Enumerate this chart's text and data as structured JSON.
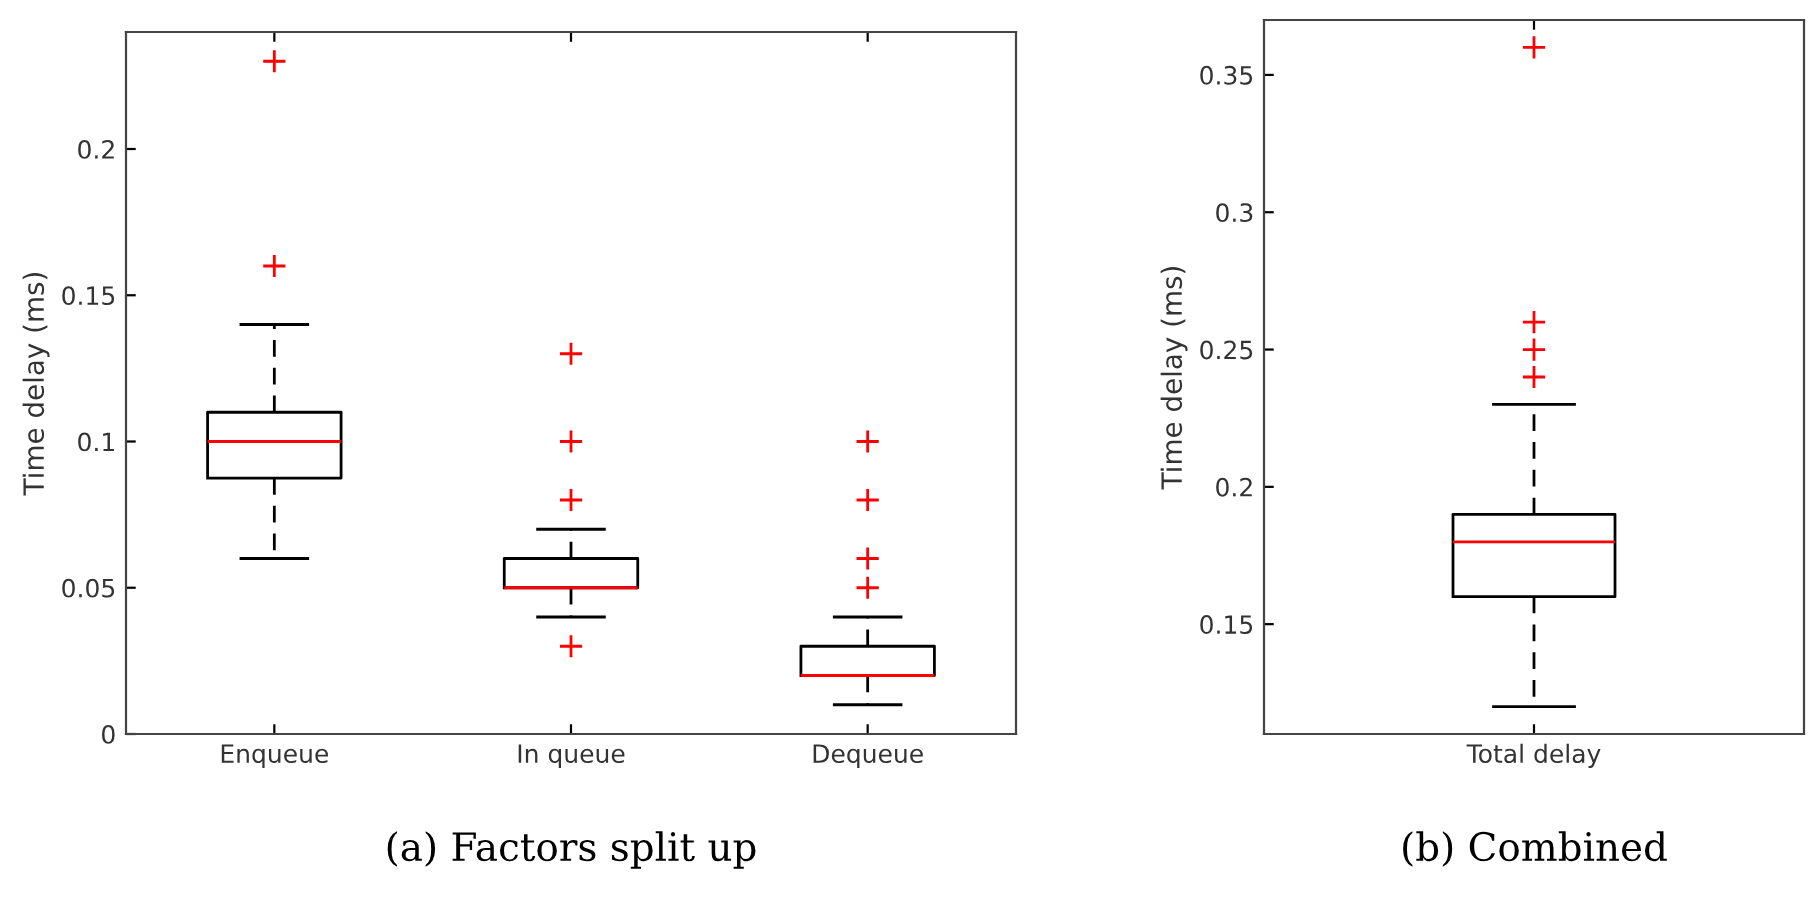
{
  "chart_data": [
    {
      "type": "box",
      "ylabel": "Time delay (ms)",
      "categories": [
        "Enqueue",
        "In queue",
        "Dequeue"
      ],
      "ylim": [
        0,
        0.24
      ],
      "yticks": [
        0,
        0.05,
        0.1,
        0.15,
        0.2
      ],
      "grid": false,
      "annotations": [
        "(a) Factors split up"
      ],
      "boxes": [
        {
          "low": 0.06,
          "q1": 0.0875,
          "median": 0.1,
          "q3": 0.11,
          "high": 0.14,
          "outliers": [
            0.16,
            0.23
          ]
        },
        {
          "low": 0.04,
          "q1": 0.05,
          "median": 0.05,
          "q3": 0.06,
          "high": 0.07,
          "outliers": [
            0.03,
            0.08,
            0.1,
            0.13
          ]
        },
        {
          "low": 0.01,
          "q1": 0.02,
          "median": 0.02,
          "q3": 0.03,
          "high": 0.04,
          "outliers": [
            0.05,
            0.06,
            0.08,
            0.1
          ]
        }
      ]
    },
    {
      "type": "box",
      "ylabel": "Time delay (ms)",
      "categories": [
        "Total delay"
      ],
      "ylim": [
        0.11,
        0.37
      ],
      "yticks": [
        0.15,
        0.2,
        0.25,
        0.3,
        0.35
      ],
      "grid": false,
      "annotations": [
        "(b) Combined"
      ],
      "boxes": [
        {
          "low": 0.12,
          "q1": 0.16,
          "median": 0.18,
          "q3": 0.19,
          "high": 0.23,
          "outliers": [
            0.24,
            0.25,
            0.26,
            0.36
          ]
        }
      ]
    }
  ]
}
